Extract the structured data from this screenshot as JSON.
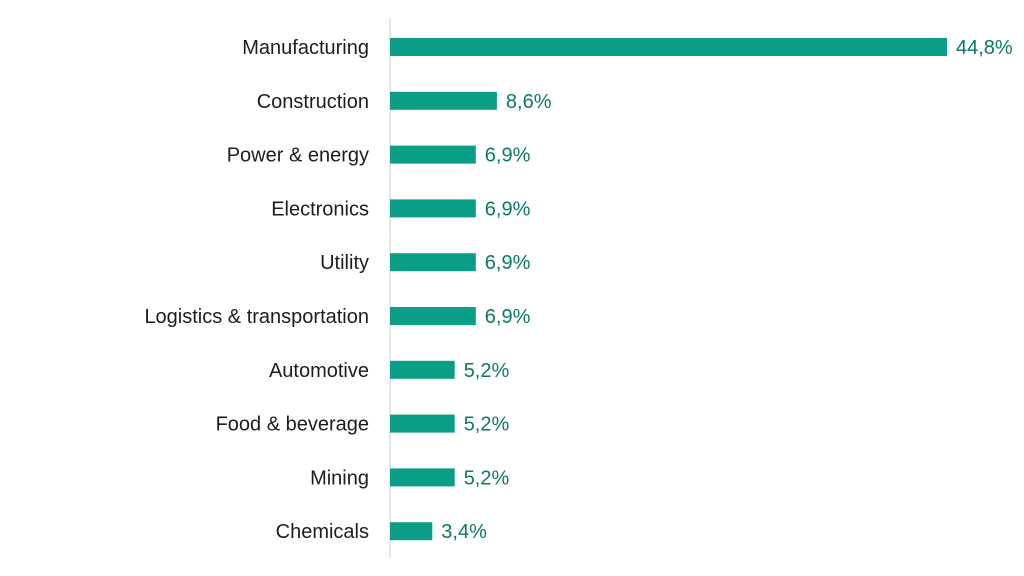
{
  "chart_data": {
    "type": "bar",
    "orientation": "horizontal",
    "title": "",
    "xlabel": "",
    "ylabel": "",
    "xlim": [
      0,
      44.8
    ],
    "grid": false,
    "legend": "none",
    "categories": [
      "Manufacturing",
      "Construction",
      "Power & energy",
      "Electronics",
      "Utility",
      "Logistics & transportation",
      "Automotive",
      "Food & beverage",
      "Mining",
      "Chemicals"
    ],
    "values": [
      44.8,
      8.6,
      6.9,
      6.9,
      6.9,
      6.9,
      5.2,
      5.2,
      5.2,
      3.4
    ],
    "value_labels": [
      "44,8%",
      "8,6%",
      "6,9%",
      "6,9%",
      "6,9%",
      "6,9%",
      "5,2%",
      "5,2%",
      "5,2%",
      "3,4%"
    ],
    "colors": {
      "bar": "#0a9e86",
      "value_text": "#0a7a68",
      "axis": "#cfcfcf"
    }
  }
}
